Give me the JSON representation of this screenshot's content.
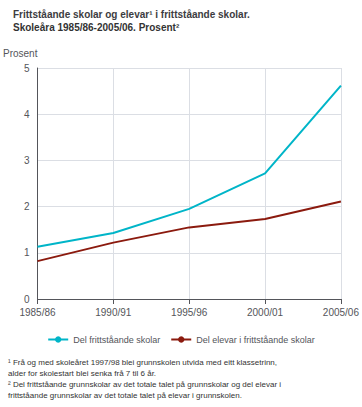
{
  "chart_data": {
    "type": "line",
    "title": "Frittståande skolar og elevar¹ i frittståande skolar.",
    "subtitle": "Skoleåra 1985/86-2005/06. Prosent²",
    "ylabel": "Prosent",
    "categories": [
      "1985/86",
      "1990/91",
      "1995/96",
      "2000/01",
      "2005/06"
    ],
    "series": [
      {
        "name": "Del frittståande skolar",
        "color": "#00B5C8",
        "values": [
          1.13,
          1.43,
          1.95,
          2.72,
          4.62
        ]
      },
      {
        "name": "Del elevar i frittståande skolar",
        "color": "#8B1A0E",
        "values": [
          0.82,
          1.22,
          1.55,
          1.73,
          2.11
        ]
      }
    ],
    "ylim": [
      0,
      5
    ],
    "yticks": [
      0,
      1,
      2,
      3,
      4,
      5
    ],
    "grid": true,
    "legend": "bottom",
    "annotations": [
      "¹ Frå og med skoleåret 1997/98 blei grunnskolen utvida med eitt klassetrinn,",
      "alder for skolestart blei senka frå 7 til 6 år.",
      "² Del frittståande grunnskolar av det totale talet på grunnskolar og del elevar i",
      "frittståande grunnskolar av det totale talet på elevar i grunnskolen."
    ]
  }
}
